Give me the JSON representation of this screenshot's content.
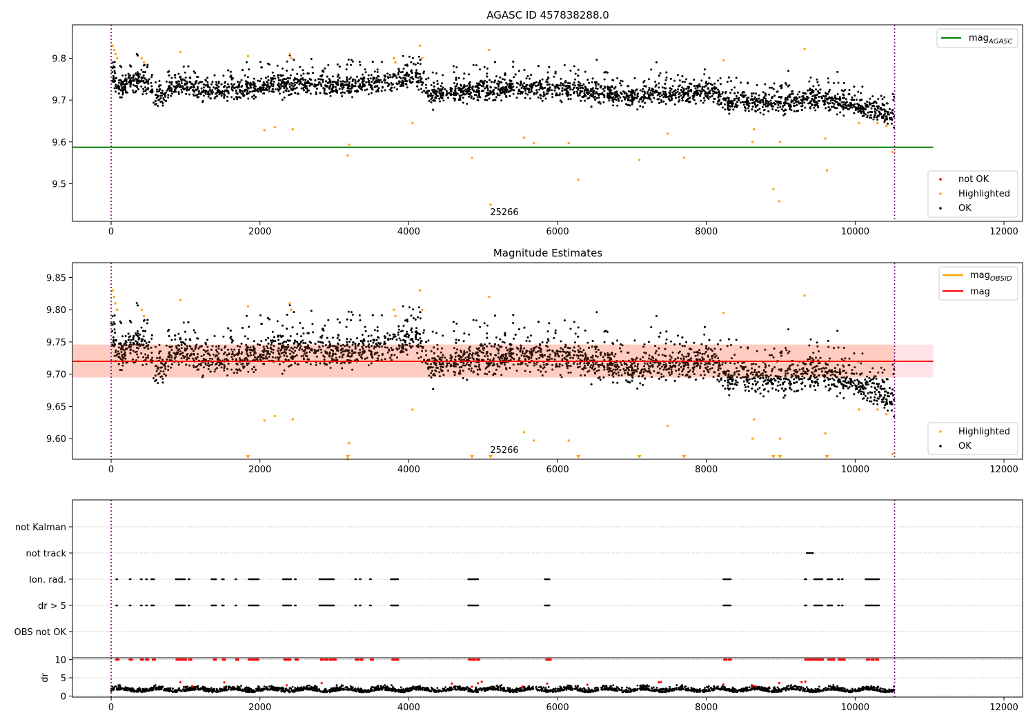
{
  "chart_data": [
    {
      "id": "p1",
      "type": "scatter",
      "title": "AGASC ID 457838288.0",
      "xlim": [
        -520,
        12250
      ],
      "ylim": [
        9.41,
        9.88
      ],
      "xticks": [
        0,
        2000,
        4000,
        6000,
        8000,
        10000,
        12000
      ],
      "yticks": [
        9.5,
        9.6,
        9.7,
        9.8
      ],
      "ytick_labels": [
        "9.5",
        "9.6",
        "9.7",
        "9.8"
      ],
      "vlines": [
        0,
        10530
      ],
      "annotation": {
        "text": "25266",
        "x": 5250,
        "y": 9.43
      },
      "hline": {
        "label": "mag",
        "subscript": "AGASC",
        "y": 9.587,
        "x_range": [
          -520,
          11050
        ],
        "color": "#008000"
      },
      "series_ok": {
        "name": "OK",
        "color": "#000000",
        "trend": [
          [
            0,
            9.78
          ],
          [
            80,
            9.73
          ],
          [
            400,
            9.75
          ],
          [
            600,
            9.71
          ],
          [
            1000,
            9.74
          ],
          [
            1200,
            9.72
          ],
          [
            2000,
            9.73
          ],
          [
            2500,
            9.74
          ],
          [
            3000,
            9.735
          ],
          [
            3600,
            9.74
          ],
          [
            4100,
            9.76
          ],
          [
            4300,
            9.715
          ],
          [
            5000,
            9.725
          ],
          [
            5600,
            9.73
          ],
          [
            6300,
            9.725
          ],
          [
            6900,
            9.71
          ],
          [
            7500,
            9.715
          ],
          [
            8100,
            9.72
          ],
          [
            8200,
            9.7
          ],
          [
            9000,
            9.69
          ],
          [
            9500,
            9.705
          ],
          [
            10000,
            9.685
          ],
          [
            10500,
            9.665
          ]
        ],
        "spread": 0.022
      },
      "series_highlighted": {
        "name": "Highlighted",
        "color": "#FFA500",
        "points": [
          [
            20,
            9.83
          ],
          [
            40,
            9.82
          ],
          [
            60,
            9.81
          ],
          [
            80,
            9.8
          ],
          [
            410,
            9.8
          ],
          [
            440,
            9.79
          ],
          [
            930,
            9.815
          ],
          [
            1840,
            9.805
          ],
          [
            2060,
            9.628
          ],
          [
            2200,
            9.635
          ],
          [
            2400,
            9.81
          ],
          [
            2420,
            9.8
          ],
          [
            2440,
            9.63
          ],
          [
            3180,
            9.568
          ],
          [
            3200,
            9.593
          ],
          [
            3800,
            9.8
          ],
          [
            3820,
            9.79
          ],
          [
            4050,
            9.645
          ],
          [
            4150,
            9.83
          ],
          [
            4180,
            9.8
          ],
          [
            4850,
            9.562
          ],
          [
            5080,
            9.82
          ],
          [
            5100,
            9.45
          ],
          [
            5550,
            9.61
          ],
          [
            5680,
            9.597
          ],
          [
            6150,
            9.597
          ],
          [
            6280,
            9.51
          ],
          [
            7100,
            9.557
          ],
          [
            7480,
            9.62
          ],
          [
            7700,
            9.562
          ],
          [
            8230,
            9.795
          ],
          [
            8620,
            9.6
          ],
          [
            8640,
            9.63
          ],
          [
            8900,
            9.487
          ],
          [
            8980,
            9.458
          ],
          [
            8990,
            9.6
          ],
          [
            9320,
            9.822
          ],
          [
            9600,
            9.608
          ],
          [
            9620,
            9.532
          ],
          [
            10050,
            9.645
          ],
          [
            10300,
            9.645
          ],
          [
            10420,
            9.638
          ],
          [
            10500,
            9.576
          ]
        ]
      },
      "legend_top": [
        {
          "label": "mag",
          "subscript": "AGASC",
          "color": "#008000"
        }
      ],
      "legend_bottom": [
        {
          "label": "not OK",
          "color": "#FF0000"
        },
        {
          "label": "Highlighted",
          "color": "#FFA500"
        },
        {
          "label": "OK",
          "color": "#000000"
        }
      ]
    },
    {
      "id": "p2",
      "type": "scatter",
      "title": "Magnitude Estimates",
      "xlim": [
        -520,
        12250
      ],
      "ylim": [
        9.568,
        9.873
      ],
      "xticks": [
        0,
        2000,
        4000,
        6000,
        8000,
        10000,
        12000
      ],
      "yticks": [
        9.6,
        9.65,
        9.7,
        9.75,
        9.8,
        9.85
      ],
      "ytick_labels": [
        "9.60",
        "9.65",
        "9.70",
        "9.75",
        "9.80",
        "9.85"
      ],
      "vlines": [
        0,
        10530
      ],
      "annotation": {
        "text": "25266",
        "x": 5250,
        "y": 9.578
      },
      "band": {
        "y": [
          9.695,
          9.746
        ],
        "x_range": [
          -520,
          11050
        ],
        "color": "#FFC0CB"
      },
      "obsid_band": {
        "y": [
          9.695,
          9.746
        ],
        "x_range": [
          -520,
          10530
        ],
        "color": "#FFA07A"
      },
      "mag_line": {
        "label": "mag",
        "y": 9.72,
        "x_range": [
          -520,
          11050
        ],
        "color": "#FF0000"
      },
      "down_markers_x": [
        1840,
        3180,
        4850,
        5100,
        6280,
        7100,
        7700,
        8900,
        8990,
        9620
      ],
      "legend_top": [
        {
          "label": "mag",
          "subscript": "OBSID",
          "color": "#FFA500"
        },
        {
          "label": "mag",
          "color": "#FF0000"
        }
      ],
      "legend_bottom": [
        {
          "label": "Highlighted",
          "color": "#FFA500"
        },
        {
          "label": "OK",
          "color": "#000000"
        }
      ]
    },
    {
      "id": "p3",
      "type": "scatter",
      "xlim": [
        -520,
        12250
      ],
      "categories": [
        "not Kalman",
        "not track",
        "Ion. rad.",
        "dr > 5",
        "OBS not OK"
      ],
      "vlines": [
        0,
        10530
      ],
      "flag_segments": {
        "not track": [
          [
            9350,
            9440
          ]
        ],
        "Ion. rad.": [
          [
            70,
            90
          ],
          [
            250,
            270
          ],
          [
            400,
            420
          ],
          [
            470,
            490
          ],
          [
            540,
            580
          ],
          [
            870,
            1000
          ],
          [
            1040,
            1060
          ],
          [
            1350,
            1420
          ],
          [
            1490,
            1520
          ],
          [
            1670,
            1690
          ],
          [
            1850,
            1990
          ],
          [
            2310,
            2420
          ],
          [
            2470,
            2490
          ],
          [
            2800,
            3000
          ],
          [
            3280,
            3300
          ],
          [
            3340,
            3360
          ],
          [
            3480,
            3500
          ],
          [
            3760,
            3860
          ],
          [
            4800,
            4940
          ],
          [
            5830,
            5900
          ],
          [
            8230,
            8330
          ],
          [
            9320,
            9350
          ],
          [
            9450,
            9560
          ],
          [
            9630,
            9700
          ],
          [
            9770,
            9790
          ],
          [
            9820,
            9840
          ],
          [
            10140,
            10330
          ]
        ],
        "dr > 5": [
          [
            70,
            90
          ],
          [
            250,
            270
          ],
          [
            400,
            420
          ],
          [
            470,
            490
          ],
          [
            540,
            580
          ],
          [
            870,
            1000
          ],
          [
            1040,
            1060
          ],
          [
            1350,
            1420
          ],
          [
            1490,
            1520
          ],
          [
            1670,
            1690
          ],
          [
            1850,
            1990
          ],
          [
            2310,
            2420
          ],
          [
            2470,
            2490
          ],
          [
            2800,
            3000
          ],
          [
            3280,
            3300
          ],
          [
            3340,
            3360
          ],
          [
            3480,
            3500
          ],
          [
            3760,
            3860
          ],
          [
            4800,
            4940
          ],
          [
            5830,
            5900
          ],
          [
            8230,
            8330
          ],
          [
            9320,
            9350
          ],
          [
            9450,
            9560
          ],
          [
            9630,
            9700
          ],
          [
            9770,
            9790
          ],
          [
            9820,
            9840
          ],
          [
            10140,
            10330
          ]
        ]
      }
    },
    {
      "id": "p4",
      "type": "scatter",
      "ylabel": "dr",
      "xlim": [
        -520,
        12250
      ],
      "ylim": [
        -0.3,
        10.5
      ],
      "xticks": [
        0,
        2000,
        4000,
        6000,
        8000,
        10000,
        12000
      ],
      "yticks": [
        0,
        5,
        10
      ],
      "vlines": [
        0,
        10530
      ],
      "red_at_10_x": [
        70,
        250,
        400,
        470,
        560,
        880,
        930,
        980,
        1050,
        1380,
        1500,
        1680,
        1850,
        1900,
        1950,
        2330,
        2380,
        2480,
        2820,
        2880,
        2940,
        2990,
        3290,
        3350,
        3490,
        3780,
        3830,
        4810,
        4860,
        4920,
        5850,
        5880,
        8240,
        8300,
        9330,
        9380,
        9420,
        9460,
        9500,
        9540,
        9640,
        9690,
        9780,
        9830,
        10160,
        10220,
        10280
      ],
      "red_raised_x": [
        930,
        1090,
        1520,
        2360,
        2830,
        4580,
        4850,
        4930,
        4980,
        5530,
        5860,
        6400,
        7360,
        7390,
        8230,
        8620,
        8660,
        8980,
        9280,
        9330
      ],
      "dr_trend": 1.0
    }
  ],
  "x_tick_labels": [
    "0",
    "2000",
    "4000",
    "6000",
    "8000",
    "10000",
    "12000"
  ]
}
